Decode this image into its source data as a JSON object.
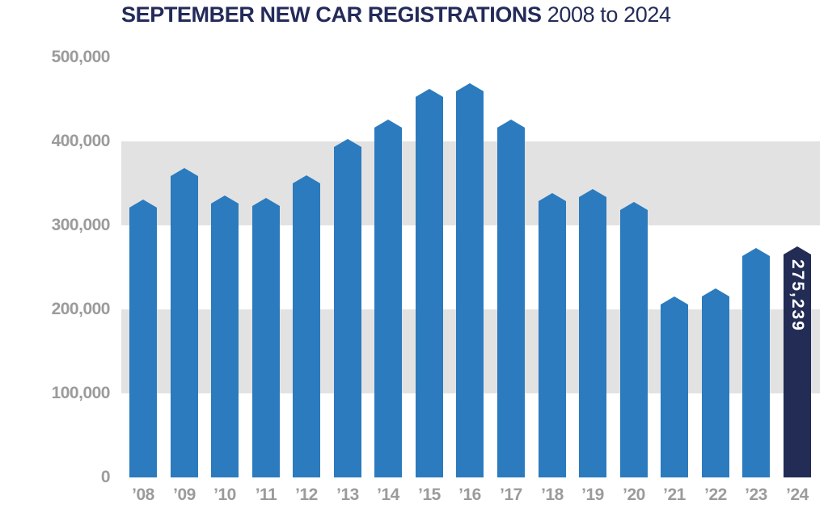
{
  "title": {
    "main": "SEPTEMBER NEW CAR REGISTRATIONS",
    "suffix": "2008 to 2024"
  },
  "colors": {
    "title_navy": "#242B59",
    "bar_blue": "#2B7BBE",
    "highlight_navy": "#222C55",
    "stripe_gray": "#E3E2E2",
    "tick_gray": "#9C9B9B",
    "value_label_white": "#FFFFFF",
    "background": "#FFFFFF"
  },
  "y_axis": {
    "ticks": [
      "500,000",
      "400,000",
      "300,000",
      "200,000",
      "100,000",
      "0"
    ],
    "max": 500000
  },
  "chart_data": {
    "type": "bar",
    "title": "SEPTEMBER NEW CAR REGISTRATIONS 2008 to 2024",
    "categories": [
      "’08",
      "’09",
      "’10",
      "’11",
      "’12",
      "’13",
      "’14",
      "’15",
      "’16",
      "’17",
      "’18",
      "’19",
      "’20",
      "’21",
      "’22",
      "’23",
      "’24"
    ],
    "values": [
      330295,
      367929,
      335246,
      332476,
      359612,
      403136,
      425861,
      462517,
      469696,
      426170,
      338834,
      343255,
      328041,
      215312,
      225269,
      272610,
      275239
    ],
    "xlabel": "",
    "ylabel": "",
    "ylim": [
      0,
      500000
    ],
    "grid_bands": [
      [
        100000,
        200000
      ],
      [
        300000,
        400000
      ]
    ],
    "legend": "none",
    "highlight_index": 16,
    "highlight_label": "275,239"
  }
}
